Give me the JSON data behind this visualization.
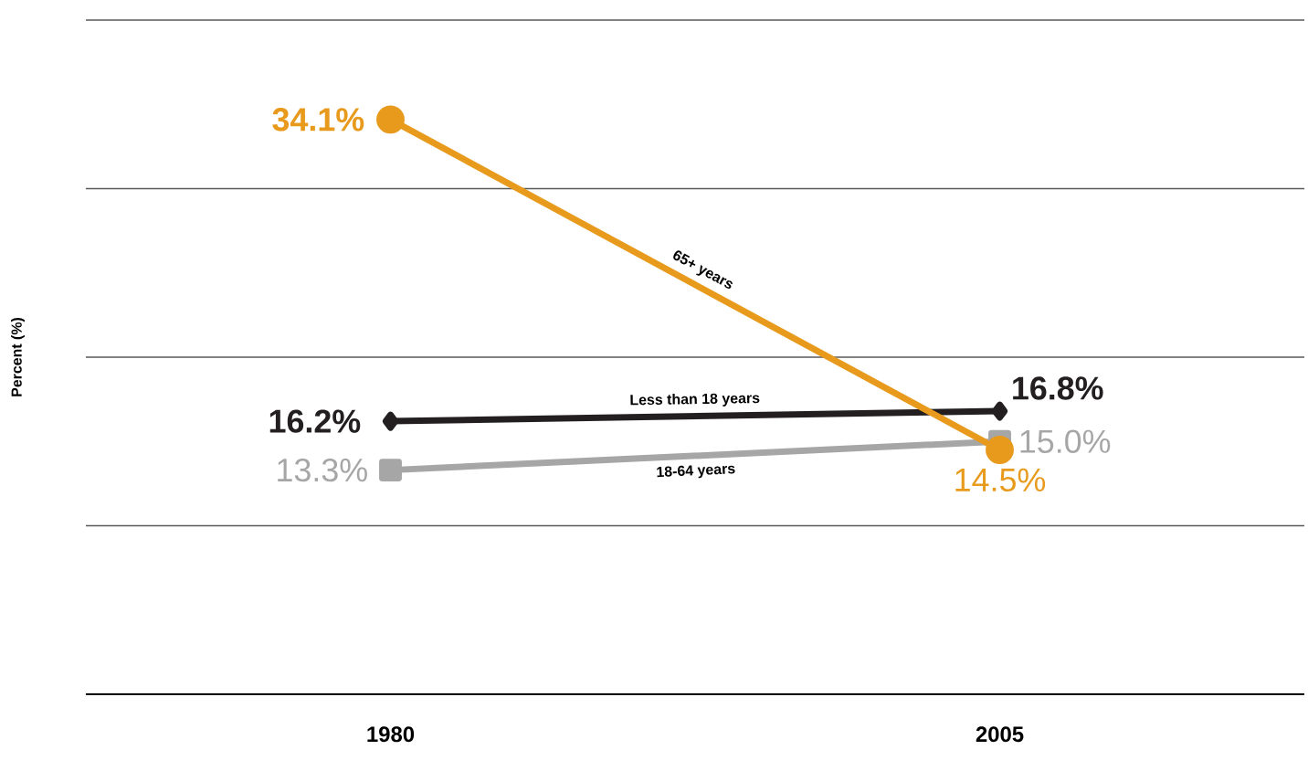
{
  "chart_data": {
    "type": "line",
    "ylabel": "Percent (%)",
    "categories": [
      "1980",
      "2005"
    ],
    "series": [
      {
        "name": "Less than 18 years",
        "color": "#231f20",
        "marker": "diamond",
        "values": [
          16.2,
          16.8
        ],
        "value_labels": [
          "16.2%",
          "16.8%"
        ]
      },
      {
        "name": "18-64 years",
        "color": "#a6a6a6",
        "marker": "square",
        "values": [
          13.3,
          15.0
        ],
        "value_labels": [
          "13.3%",
          "15.0%"
        ]
      },
      {
        "name": "65+ years",
        "color": "#e89a1c",
        "marker": "circle",
        "values": [
          34.1,
          14.5
        ],
        "value_labels": [
          "34.1%",
          "14.5%"
        ]
      }
    ],
    "ylim": [
      0,
      40
    ],
    "yticks": [
      {
        "value": 0,
        "label": null
      },
      {
        "value": 10,
        "label": null
      },
      {
        "value": 20,
        "label": null
      },
      {
        "value": 30,
        "label": null
      },
      {
        "value": 40,
        "label": null
      }
    ],
    "grid": "y",
    "tick_labels": "x",
    "line_style": "solid"
  }
}
